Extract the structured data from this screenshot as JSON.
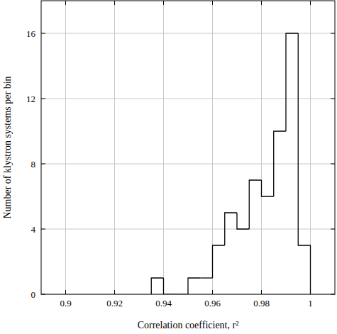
{
  "chart_data": {
    "type": "histogram",
    "x_label": "Correlation coefficient, r²",
    "y_label": "Number of klystron systems per bin",
    "bins": [
      0.935,
      0.94,
      0.945,
      0.95,
      0.955,
      0.96,
      0.965,
      0.97,
      0.975,
      0.98,
      0.985,
      0.99,
      0.995,
      1.0
    ],
    "values": [
      1,
      0,
      0,
      1,
      1,
      3,
      5,
      4,
      7,
      6,
      10,
      16,
      3
    ],
    "color": "#000000",
    "xlim": [
      0.89,
      1.01
    ],
    "xticks": [
      0.9,
      0.92,
      0.94,
      0.96,
      0.98,
      1
    ],
    "ylim": [
      0,
      18
    ],
    "yticks": [
      0,
      4,
      8,
      12,
      16
    ],
    "grid": true
  }
}
